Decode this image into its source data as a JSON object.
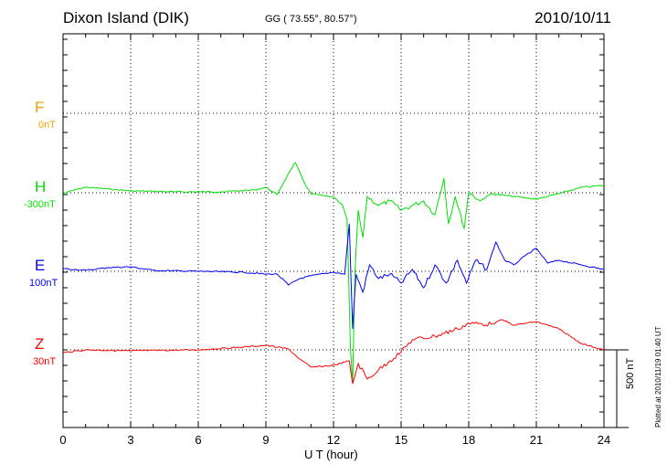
{
  "header": {
    "station": "Dixon Island (DIK)",
    "coords": "GG ( 73.55°,  80.57°)",
    "date": "2010/10/11"
  },
  "footer": {
    "plotted": "Plotted at 2010/11/19 01:40 UT",
    "scale": "500 nT"
  },
  "colors": {
    "F": "#f0a000",
    "H": "#00e000",
    "E": "#0000ff",
    "Z": "#ff0000"
  },
  "chart_data": {
    "type": "line",
    "xlabel": "U T (hour)",
    "xlim": [
      0,
      24
    ],
    "xticks": [
      "0",
      "3",
      "6",
      "9",
      "12",
      "15",
      "18",
      "21",
      "24"
    ],
    "scale_bar_nT": 500,
    "grid": true,
    "series": [
      {
        "name": "F",
        "baseline_label": "0nT",
        "color": "#f0a000",
        "points": []
      },
      {
        "name": "H",
        "baseline_label": "-300nT",
        "color": "#00e000",
        "points": [
          [
            0,
            -6
          ],
          [
            0.5,
            18
          ],
          [
            1,
            35
          ],
          [
            2,
            24
          ],
          [
            3,
            12
          ],
          [
            5,
            6
          ],
          [
            7,
            6
          ],
          [
            8.5,
            18
          ],
          [
            9,
            35
          ],
          [
            9.5,
            -12
          ],
          [
            10,
            124
          ],
          [
            10.3,
            194
          ],
          [
            10.7,
            65
          ],
          [
            11,
            -6
          ],
          [
            11.5,
            -18
          ],
          [
            12,
            -29
          ],
          [
            12.4,
            -82
          ],
          [
            12.6,
            -171
          ],
          [
            12.75,
            -994
          ],
          [
            12.85,
            -1229
          ],
          [
            12.95,
            -524
          ],
          [
            13.1,
            -112
          ],
          [
            13.3,
            -288
          ],
          [
            13.5,
            -24
          ],
          [
            14,
            -82
          ],
          [
            14.5,
            -53
          ],
          [
            15,
            -112
          ],
          [
            15.5,
            -82
          ],
          [
            16,
            -53
          ],
          [
            16.5,
            -141
          ],
          [
            16.9,
            94
          ],
          [
            17.1,
            -200
          ],
          [
            17.4,
            -24
          ],
          [
            17.8,
            -229
          ],
          [
            18,
            6
          ],
          [
            18.5,
            -53
          ],
          [
            19,
            -6
          ],
          [
            20,
            -24
          ],
          [
            21,
            -41
          ],
          [
            22,
            -6
          ],
          [
            23,
            35
          ],
          [
            24,
            47
          ]
        ]
      },
      {
        "name": "E",
        "baseline_label": "100nT",
        "color": "#0000ff",
        "points": [
          [
            0,
            18
          ],
          [
            0.5,
            12
          ],
          [
            1,
            6
          ],
          [
            2,
            24
          ],
          [
            3,
            29
          ],
          [
            4,
            6
          ],
          [
            6,
            0
          ],
          [
            8,
            -6
          ],
          [
            9,
            -18
          ],
          [
            9.5,
            -18
          ],
          [
            10,
            -88
          ],
          [
            10.5,
            -47
          ],
          [
            11,
            -29
          ],
          [
            12,
            -6
          ],
          [
            12.5,
            -18
          ],
          [
            12.7,
            306
          ],
          [
            12.85,
            -371
          ],
          [
            13,
            -18
          ],
          [
            13.3,
            -135
          ],
          [
            13.6,
            41
          ],
          [
            14,
            -47
          ],
          [
            14.5,
            -18
          ],
          [
            15,
            -76
          ],
          [
            15.5,
            12
          ],
          [
            16,
            -106
          ],
          [
            16.5,
            41
          ],
          [
            17,
            -76
          ],
          [
            17.5,
            71
          ],
          [
            17.9,
            -76
          ],
          [
            18.3,
            71
          ],
          [
            18.8,
            12
          ],
          [
            19.2,
            188
          ],
          [
            19.6,
            71
          ],
          [
            20,
            41
          ],
          [
            20.5,
            100
          ],
          [
            21,
            147
          ],
          [
            21.5,
            53
          ],
          [
            22,
            71
          ],
          [
            23,
            41
          ],
          [
            24,
            12
          ]
        ]
      },
      {
        "name": "Z",
        "baseline_label": "30nT",
        "color": "#ff0000",
        "points": [
          [
            0,
            -18
          ],
          [
            1,
            0
          ],
          [
            3,
            -6
          ],
          [
            6,
            0
          ],
          [
            8,
            18
          ],
          [
            9,
            29
          ],
          [
            10,
            6
          ],
          [
            10.5,
            -59
          ],
          [
            11,
            -112
          ],
          [
            12,
            -100
          ],
          [
            12.7,
            -71
          ],
          [
            12.85,
            -218
          ],
          [
            13.1,
            -88
          ],
          [
            13.5,
            -188
          ],
          [
            14,
            -129
          ],
          [
            14.5,
            -71
          ],
          [
            15,
            -12
          ],
          [
            15.5,
            65
          ],
          [
            16.5,
            88
          ],
          [
            17.5,
            135
          ],
          [
            18,
            171
          ],
          [
            19,
            165
          ],
          [
            19.5,
            194
          ],
          [
            20,
            159
          ],
          [
            21,
            182
          ],
          [
            22,
            135
          ],
          [
            23,
            41
          ],
          [
            24,
            0
          ]
        ]
      }
    ]
  }
}
